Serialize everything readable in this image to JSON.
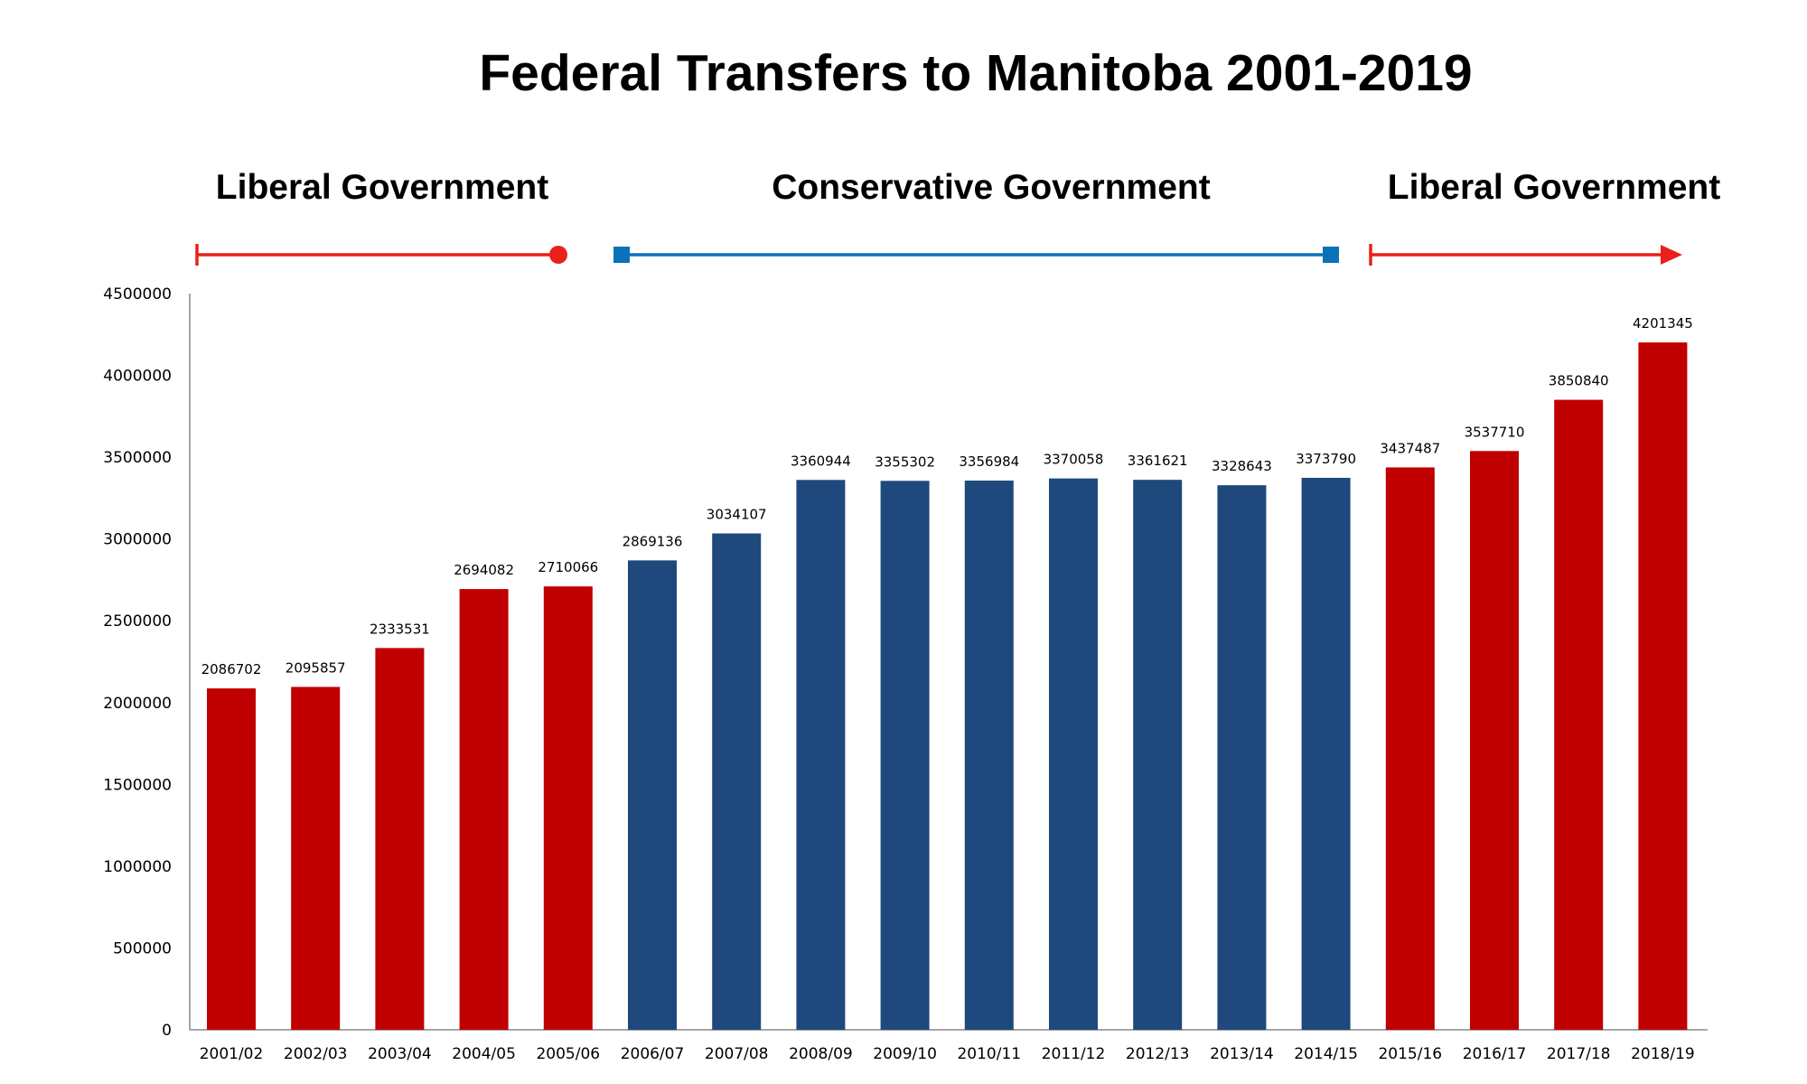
{
  "chart_data": {
    "type": "bar",
    "title": "Federal Transfers to Manitoba 2001-2019",
    "xlabel": "",
    "ylabel": "",
    "ylim": [
      0,
      4500000
    ],
    "yticks": [
      0,
      500000,
      1000000,
      1500000,
      2000000,
      2500000,
      3000000,
      3500000,
      4000000,
      4500000
    ],
    "grid": false,
    "categories": [
      "2001/02",
      "2002/03",
      "2003/04",
      "2004/05",
      "2005/06",
      "2006/07",
      "2007/08",
      "2008/09",
      "2009/10",
      "2010/11",
      "2011/12",
      "2012/13",
      "2013/14",
      "2014/15",
      "2015/16",
      "2016/17",
      "2017/18",
      "2018/19"
    ],
    "values": [
      2086702,
      2095857,
      2333531,
      2694082,
      2710066,
      2869136,
      3034107,
      3360944,
      3355302,
      3356984,
      3370058,
      3361621,
      3328643,
      3373790,
      3437487,
      3537710,
      3850840,
      4201345
    ],
    "bar_colors": [
      "#c00000",
      "#c00000",
      "#c00000",
      "#c00000",
      "#c00000",
      "#1f497d",
      "#1f497d",
      "#1f497d",
      "#1f497d",
      "#1f497d",
      "#1f497d",
      "#1f497d",
      "#1f497d",
      "#1f497d",
      "#c00000",
      "#c00000",
      "#c00000",
      "#c00000"
    ],
    "governments": [
      {
        "label": "Liberal Government",
        "color": "#e8211b",
        "start": "2001/02",
        "end": "2005/06",
        "start_marker": "bar",
        "end_marker": "circle"
      },
      {
        "label": "Conservative Government",
        "color": "#0b72b9",
        "start": "2006/07",
        "end": "2014/15",
        "start_marker": "square",
        "end_marker": "square"
      },
      {
        "label": "Liberal Government",
        "color": "#e8211b",
        "start": "2015/16",
        "end": "2018/19",
        "start_marker": "bar",
        "end_marker": "arrow"
      }
    ]
  }
}
